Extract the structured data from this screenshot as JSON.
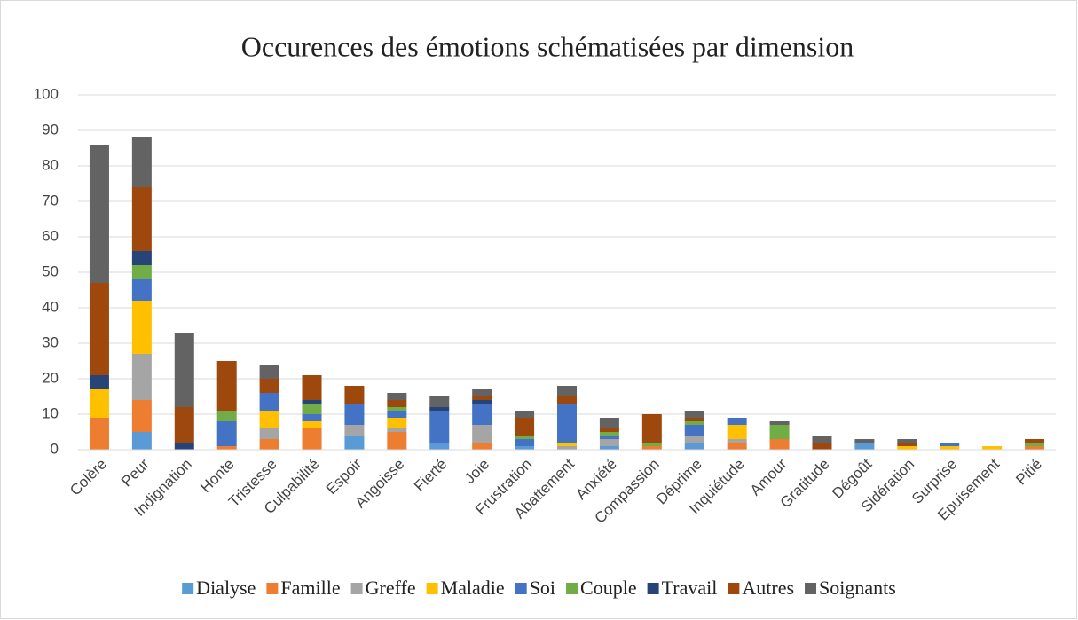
{
  "chart_data": {
    "type": "bar",
    "stacked": true,
    "title": "Occurences des émotions schématisées par dimension",
    "categories": [
      "Colère",
      "Peur",
      "Indignation",
      "Honte",
      "Tristesse",
      "Culpabilité",
      "Espoir",
      "Angoisse",
      "Fierté",
      "Joie",
      "Frustration",
      "Abattement",
      "Anxiété",
      "Compassion",
      "Déprime",
      "Inquiétude",
      "Amour",
      "Gratitude",
      "Dégoût",
      "Sidération",
      "Surprise",
      "Epuisement",
      "Pitié"
    ],
    "series": [
      {
        "name": "Dialyse",
        "color": "#5b9bd5",
        "values": [
          0,
          5,
          0,
          0,
          0,
          0,
          4,
          0,
          2,
          0,
          1,
          0,
          1,
          0,
          2,
          0,
          0,
          0,
          2,
          0,
          0,
          0,
          0
        ]
      },
      {
        "name": "Famille",
        "color": "#ed7d31",
        "values": [
          9,
          9,
          0,
          1,
          3,
          6,
          0,
          5,
          0,
          2,
          0,
          0,
          0,
          1,
          0,
          2,
          3,
          0,
          0,
          0,
          0,
          0,
          1
        ]
      },
      {
        "name": "Greffe",
        "color": "#a5a5a5",
        "values": [
          0,
          13,
          0,
          0,
          3,
          0,
          3,
          1,
          0,
          5,
          0,
          1,
          2,
          0,
          2,
          1,
          0,
          0,
          0,
          0,
          0,
          0,
          0
        ]
      },
      {
        "name": "Maladie",
        "color": "#ffc000",
        "values": [
          8,
          15,
          0,
          0,
          5,
          2,
          0,
          3,
          0,
          0,
          0,
          1,
          0,
          0,
          0,
          4,
          0,
          0,
          0,
          1,
          1,
          1,
          0
        ]
      },
      {
        "name": "Soi",
        "color": "#4472c4",
        "values": [
          0,
          6,
          0,
          7,
          5,
          2,
          6,
          2,
          9,
          6,
          2,
          11,
          1,
          0,
          3,
          2,
          0,
          0,
          0,
          0,
          1,
          0,
          0
        ]
      },
      {
        "name": "Couple",
        "color": "#70ad47",
        "values": [
          0,
          4,
          0,
          3,
          0,
          3,
          0,
          1,
          0,
          0,
          1,
          0,
          1,
          1,
          1,
          0,
          4,
          0,
          0,
          0,
          0,
          0,
          1
        ]
      },
      {
        "name": "Travail",
        "color": "#264478",
        "values": [
          4,
          4,
          2,
          0,
          0,
          1,
          0,
          0,
          1,
          1,
          0,
          0,
          0,
          0,
          0,
          0,
          0,
          0,
          0,
          0,
          0,
          0,
          0
        ]
      },
      {
        "name": "Autres",
        "color": "#9e480e",
        "values": [
          26,
          18,
          10,
          14,
          4,
          7,
          5,
          2,
          0,
          1,
          5,
          2,
          1,
          8,
          1,
          0,
          0,
          2,
          0,
          1,
          0,
          0,
          1
        ]
      },
      {
        "name": "Soignants",
        "color": "#636363",
        "values": [
          39,
          14,
          21,
          0,
          4,
          0,
          0,
          2,
          3,
          2,
          2,
          3,
          3,
          0,
          2,
          0,
          1,
          2,
          1,
          1,
          0,
          0,
          0
        ]
      }
    ],
    "ylim": [
      0,
      100
    ],
    "yticks": [
      0,
      10,
      20,
      30,
      40,
      50,
      60,
      70,
      80,
      90,
      100
    ],
    "grid": true,
    "legend": "bottom"
  }
}
